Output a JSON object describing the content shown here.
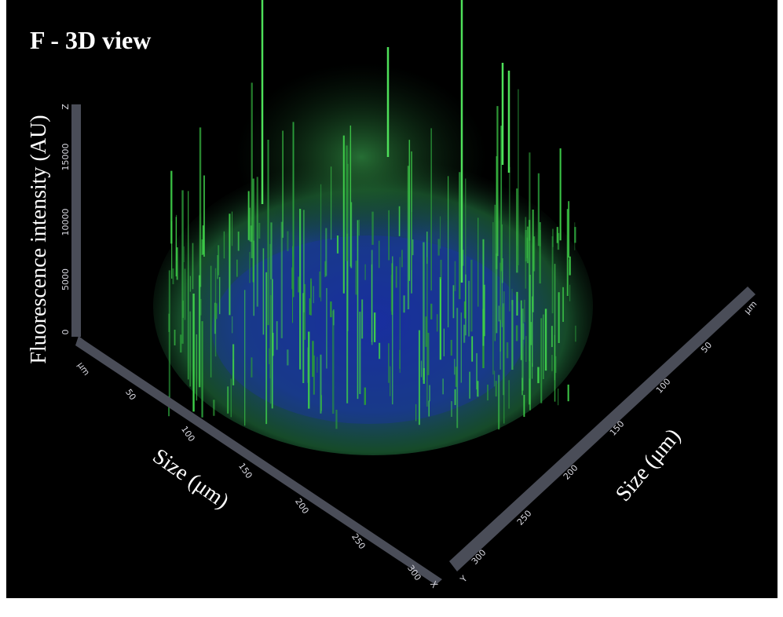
{
  "title": "F - 3D view",
  "z_axis": {
    "label": "Fluorescence intensity (AU)",
    "name": "Z",
    "ticks": [
      15000,
      10000,
      5000,
      0
    ]
  },
  "x_axis": {
    "label": "Size (μm)",
    "unit": "µm",
    "name": "X",
    "ticks": [
      50,
      100,
      150,
      200,
      250,
      300
    ]
  },
  "y_axis": {
    "label": "Size (μm)",
    "unit": "µm",
    "name": "Y",
    "ticks": [
      50,
      100,
      150,
      200,
      250,
      300
    ]
  }
}
